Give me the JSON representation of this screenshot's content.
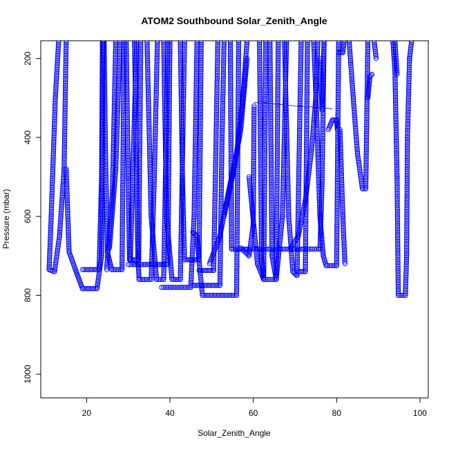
{
  "chart_data": {
    "type": "scatter",
    "title": "ATOM2 Southbound Solar_Zenith_Angle",
    "xlabel": "Solar_Zenith_Angle",
    "ylabel": "Pressure (mbar)",
    "xlim": [
      9,
      102
    ],
    "ylim": [
      1060,
      155
    ],
    "y_inverted": true,
    "grid": false,
    "legend": "none",
    "x_ticks": [
      20,
      40,
      60,
      80,
      100
    ],
    "y_ticks": [
      200,
      400,
      600,
      800,
      1000
    ],
    "marker": "open-circle",
    "color": "#0000ff",
    "series": [
      {
        "values": [
          [
            11.0,
            735
          ],
          [
            11.5,
            600
          ],
          [
            12.5,
            300
          ],
          [
            13.3,
            155
          ]
        ]
      },
      {
        "values": [
          [
            11.0,
            735
          ],
          [
            12.3,
            740
          ],
          [
            13.5,
            650
          ],
          [
            14.6,
            480
          ],
          [
            15.1,
            155
          ]
        ]
      },
      {
        "values": [
          [
            15.1,
            480
          ],
          [
            15.8,
            690
          ],
          [
            17.5,
            740
          ],
          [
            19.0,
            783
          ],
          [
            22.5,
            783
          ],
          [
            23.6,
            700
          ],
          [
            24.0,
            155
          ]
        ]
      },
      {
        "values": [
          [
            19.0,
            735
          ],
          [
            23.0,
            735
          ],
          [
            23.6,
            500
          ],
          [
            23.8,
            155
          ]
        ]
      },
      {
        "values": [
          [
            24.2,
            155
          ],
          [
            24.5,
            420
          ],
          [
            25.0,
            690
          ],
          [
            26.0,
            735
          ],
          [
            28.5,
            735
          ],
          [
            29.0,
            155
          ]
        ]
      },
      {
        "values": [
          [
            24.8,
            735
          ],
          [
            26.2,
            540
          ],
          [
            27.0,
            155
          ]
        ]
      },
      {
        "values": [
          [
            25.5,
            680
          ],
          [
            27.0,
            480
          ],
          [
            28.0,
            155
          ]
        ]
      },
      {
        "values": [
          [
            29.5,
            155
          ],
          [
            30.0,
            500
          ],
          [
            30.3,
            710
          ],
          [
            32.5,
            710
          ],
          [
            33.0,
            155
          ]
        ]
      },
      {
        "values": [
          [
            30.5,
            710
          ],
          [
            32.0,
            155
          ]
        ]
      },
      {
        "values": [
          [
            31.5,
            155
          ],
          [
            32.3,
            700
          ],
          [
            32.6,
            760
          ],
          [
            35.5,
            760
          ],
          [
            36.2,
            520
          ],
          [
            37.0,
            155
          ]
        ]
      },
      {
        "values": [
          [
            30.0,
            722
          ],
          [
            39.5,
            722
          ],
          [
            40.0,
            155
          ]
        ]
      },
      {
        "values": [
          [
            34.5,
            155
          ],
          [
            35.5,
            600
          ],
          [
            36.8,
            760
          ],
          [
            38.5,
            760
          ],
          [
            39.5,
            155
          ]
        ]
      },
      {
        "values": [
          [
            38.5,
            155
          ],
          [
            39.2,
            600
          ],
          [
            40.5,
            760
          ],
          [
            42.5,
            760
          ],
          [
            43.5,
            155
          ]
        ]
      },
      {
        "values": [
          [
            38.0,
            780
          ],
          [
            45.0,
            780
          ],
          [
            45.8,
            600
          ],
          [
            46.5,
            155
          ]
        ]
      },
      {
        "values": [
          [
            42.5,
            155
          ],
          [
            43.0,
            500
          ],
          [
            43.5,
            710
          ],
          [
            47.0,
            710
          ],
          [
            47.5,
            155
          ]
        ]
      },
      {
        "values": [
          [
            45.5,
            640
          ],
          [
            46.5,
            650
          ],
          [
            47.2,
            737
          ],
          [
            47.8,
            800
          ],
          [
            56.0,
            800
          ],
          [
            56.5,
            155
          ]
        ]
      },
      {
        "values": [
          [
            45.5,
            775
          ],
          [
            52.0,
            775
          ],
          [
            52.5,
            400
          ],
          [
            53.0,
            155
          ]
        ]
      },
      {
        "values": [
          [
            47.0,
            737
          ],
          [
            50.5,
            737
          ],
          [
            51.5,
            155
          ]
        ]
      },
      {
        "values": [
          [
            49.5,
            720
          ],
          [
            52.0,
            650
          ],
          [
            54.0,
            540
          ],
          [
            56.0,
            440
          ],
          [
            57.5,
            300
          ],
          [
            58.5,
            155
          ]
        ]
      },
      {
        "values": [
          [
            53.0,
            600
          ],
          [
            55.0,
            500
          ],
          [
            57.0,
            380
          ],
          [
            58.5,
            200
          ]
        ]
      },
      {
        "values": [
          [
            54.5,
            155
          ],
          [
            54.8,
            683
          ],
          [
            61.0,
            683
          ],
          [
            76.0,
            683
          ],
          [
            76.5,
            520
          ],
          [
            77.0,
            155
          ]
        ]
      },
      {
        "values": [
          [
            57.0,
            680
          ],
          [
            59.0,
            700
          ],
          [
            60.0,
            620
          ],
          [
            60.2,
            320
          ]
        ]
      },
      {
        "values": [
          [
            59.0,
            500
          ],
          [
            61.0,
            720
          ],
          [
            62.5,
            760
          ],
          [
            65.5,
            760
          ],
          [
            66.0,
            155
          ]
        ]
      },
      {
        "values": [
          [
            61.5,
            155
          ],
          [
            62.0,
            700
          ],
          [
            62.5,
            760
          ],
          [
            63.0,
            155
          ]
        ]
      },
      {
        "values": [
          [
            64.0,
            155
          ],
          [
            64.5,
            700
          ],
          [
            65.5,
            760
          ],
          [
            67.0,
            600
          ],
          [
            68.0,
            155
          ]
        ]
      },
      {
        "values": [
          [
            67.5,
            155
          ],
          [
            68.5,
            600
          ],
          [
            69.5,
            740
          ],
          [
            70.5,
            750
          ],
          [
            71.5,
            155
          ]
        ]
      },
      {
        "values": [
          [
            71.0,
            740
          ],
          [
            72.5,
            740
          ],
          [
            73.0,
            155
          ]
        ]
      },
      {
        "values": [
          [
            69.0,
            680
          ],
          [
            70.8,
            650
          ],
          [
            72.5,
            560
          ],
          [
            74.0,
            430
          ],
          [
            75.0,
            300
          ],
          [
            75.5,
            155
          ]
        ]
      },
      {
        "values": [
          [
            74.5,
            155
          ],
          [
            75.2,
            340
          ],
          [
            76.0,
            600
          ],
          [
            76.8,
            700
          ],
          [
            77.5,
            725
          ],
          [
            80.0,
            725
          ],
          [
            80.5,
            155
          ]
        ]
      },
      {
        "values": [
          [
            76.0,
            200
          ],
          [
            76.5,
            330
          ],
          [
            77.0,
            155
          ]
        ]
      },
      {
        "values": [
          [
            78.0,
            380
          ],
          [
            79.0,
            356
          ],
          [
            80.0,
            356
          ],
          [
            80.2,
            380
          ]
        ]
      },
      {
        "values": [
          [
            80.5,
            185
          ],
          [
            81.5,
            185
          ],
          [
            81.8,
            155
          ]
        ]
      },
      {
        "values": [
          [
            80.8,
            380
          ],
          [
            81.5,
            600
          ],
          [
            82.0,
            720
          ]
        ]
      },
      {
        "values": [
          [
            83.0,
            155
          ],
          [
            84.0,
            300
          ],
          [
            85.0,
            440
          ],
          [
            86.2,
            530
          ],
          [
            87.0,
            530
          ],
          [
            87.5,
            155
          ]
        ]
      },
      {
        "values": [
          [
            87.5,
            300
          ],
          [
            88.0,
            245
          ],
          [
            88.5,
            240
          ]
        ]
      },
      {
        "values": [
          [
            89.0,
            155
          ],
          [
            89.5,
            200
          ]
        ]
      },
      {
        "values": [
          [
            93.5,
            155
          ],
          [
            94.0,
            230
          ],
          [
            94.5,
            500
          ],
          [
            94.8,
            800
          ],
          [
            96.5,
            800
          ],
          [
            96.8,
            700
          ],
          [
            97.0,
            400
          ],
          [
            97.5,
            200
          ],
          [
            98.0,
            155
          ]
        ]
      },
      {
        "values": [
          [
            94.0,
            155
          ],
          [
            94.5,
            240
          ]
        ]
      }
    ],
    "connector": [
      [
        60.2,
        312
      ],
      [
        62.0,
        310
      ],
      [
        64.0,
        314
      ],
      [
        70.0,
        320
      ],
      [
        78.0,
        326
      ],
      [
        79.0,
        328
      ]
    ]
  }
}
